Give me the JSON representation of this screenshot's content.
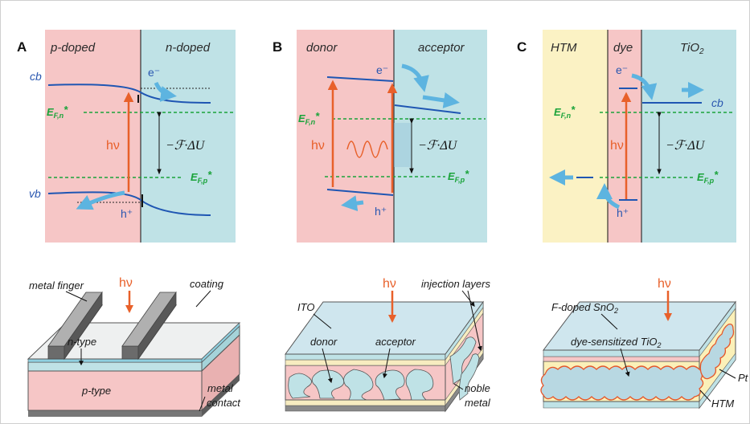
{
  "colors": {
    "p_region": "#f6c6c6",
    "n_region": "#bfe2e6",
    "htm_region": "#fbf2c4",
    "band_line": "#1f56b3",
    "fermi_line": "#1aa33a",
    "photon": "#e8602a",
    "arrow": "#5db4e0",
    "panel_bg": "#ffffff",
    "frame": "#bdbdbd"
  },
  "panels": {
    "a": {
      "letter": "A",
      "left_region": "p-doped",
      "right_region": "n-doped",
      "cb": "cb",
      "vb": "vb",
      "electron": "e⁻",
      "hole": "h⁺",
      "efn": "E",
      "efn_sub": "F,n",
      "efp": "E",
      "efp_sub": "F,p",
      "star": "*",
      "photon": "hν",
      "delta_u": "−ℱ·ΔU",
      "device": {
        "metal_finger": "metal finger",
        "photon": "hν",
        "coating": "coating",
        "n_type": "n-type",
        "p_type": "p-type",
        "metal": "metal",
        "contact": "contact"
      }
    },
    "b": {
      "letter": "B",
      "left_region": "donor",
      "right_region": "acceptor",
      "electron": "e⁻",
      "hole": "h⁺",
      "efn": "E",
      "efn_sub": "F,n",
      "efp": "E",
      "efp_sub": "F,p",
      "star": "*",
      "photon": "hν",
      "delta_u": "−ℱ·ΔU",
      "device": {
        "ito": "ITO",
        "photon": "hν",
        "injection_layers": "injection layers",
        "donor": "donor",
        "acceptor": "acceptor",
        "noble": "noble",
        "metal": "metal"
      }
    },
    "c": {
      "letter": "C",
      "left_region": "HTM",
      "mid_region": "dye",
      "right_region": "TiO",
      "right_region_sub": "2",
      "cb": "cb",
      "electron": "e⁻",
      "hole": "h⁺",
      "efn": "E",
      "efn_sub": "F,n",
      "efp": "E",
      "efp_sub": "F,p",
      "star": "*",
      "photon": "hν",
      "delta_u": "−ℱ·ΔU",
      "device": {
        "fto": "F-doped SnO",
        "fto_sub": "2",
        "photon": "hν",
        "dye_tio2": "dye-sensitized TiO",
        "dye_tio2_sub": "2",
        "pt": "Pt",
        "htm": "HTM"
      }
    }
  }
}
